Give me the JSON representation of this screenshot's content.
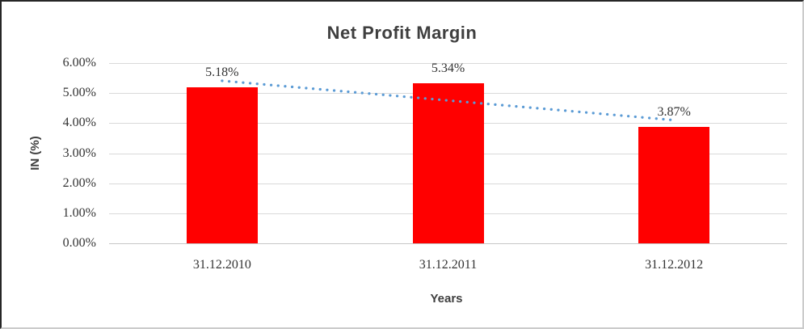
{
  "chart_data": {
    "type": "bar",
    "title": "Net Profit Margin",
    "xlabel": "Years",
    "ylabel": "IN (%)",
    "categories": [
      "31.12.2010",
      "31.12.2011",
      "31.12.2012"
    ],
    "values": [
      5.18,
      5.34,
      3.87
    ],
    "data_labels": [
      "5.18%",
      "5.34%",
      "3.87%"
    ],
    "y_ticks": [
      "0.00%",
      "1.00%",
      "2.00%",
      "3.00%",
      "4.00%",
      "5.00%",
      "6.00%"
    ],
    "ylim": [
      0,
      6
    ],
    "grid": true,
    "legend": "none",
    "bar_color": "#FF0000",
    "trendline": {
      "type": "linear",
      "style": "dotted",
      "color": "#5B9BD5",
      "start_value": 5.41,
      "end_value": 4.1
    },
    "colors": {
      "title_text": "#3F3F3F",
      "tick_text": "#333333",
      "gridline": "#D9D9D9",
      "axis_line": "#C6C6C6"
    }
  }
}
